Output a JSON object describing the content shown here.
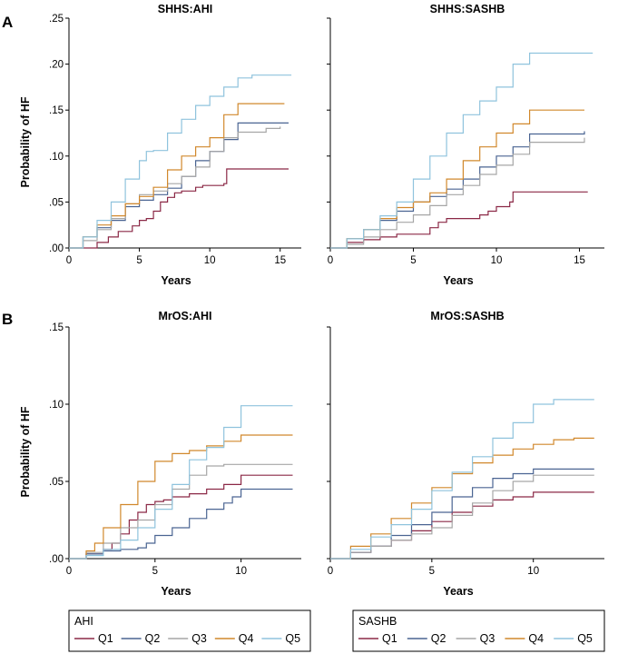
{
  "figure": {
    "row_letters": [
      "A",
      "B"
    ]
  },
  "series_colors": {
    "Q1": "#8b2846",
    "Q2": "#4a6492",
    "Q3": "#a6a6a6",
    "Q4": "#d1882c",
    "Q5": "#8fc3dd"
  },
  "chart_data": [
    {
      "type": "line",
      "title": "SHHS:AHI",
      "ylabel": "Probability of HF",
      "xlabel": "Years",
      "xlim": [
        0,
        16.5
      ],
      "ylim": [
        0,
        0.25
      ],
      "xticks": [
        0,
        5,
        10,
        15
      ],
      "xtick_labels": [
        "0",
        "5",
        "10",
        "15"
      ],
      "yticks": [
        0,
        0.05,
        0.1,
        0.15,
        0.2,
        0.25
      ],
      "ytick_labels": [
        ".00",
        ".05",
        ".10",
        ".15",
        ".20",
        ".25"
      ],
      "series": [
        {
          "name": "Q1",
          "x": [
            0,
            2,
            2.8,
            3.5,
            4.5,
            5,
            5.5,
            6,
            6.5,
            7,
            7.5,
            8,
            9,
            9.5,
            11,
            11.2,
            15.6
          ],
          "y": [
            0,
            0.006,
            0.012,
            0.018,
            0.024,
            0.03,
            0.032,
            0.04,
            0.05,
            0.055,
            0.06,
            0.062,
            0.066,
            0.068,
            0.07,
            0.086,
            0.086
          ]
        },
        {
          "name": "Q2",
          "x": [
            0,
            1,
            2,
            3,
            4,
            5,
            6,
            7,
            8,
            9,
            10,
            11,
            12,
            15.6
          ],
          "y": [
            0,
            0.012,
            0.022,
            0.03,
            0.045,
            0.052,
            0.058,
            0.065,
            0.078,
            0.095,
            0.105,
            0.118,
            0.136,
            0.136
          ]
        },
        {
          "name": "Q3",
          "x": [
            0,
            1,
            2,
            3,
            4,
            5,
            6,
            7,
            8,
            9,
            10,
            11,
            12,
            14,
            15
          ],
          "y": [
            0,
            0.008,
            0.02,
            0.032,
            0.048,
            0.058,
            0.062,
            0.07,
            0.078,
            0.088,
            0.105,
            0.12,
            0.126,
            0.13,
            0.132
          ]
        },
        {
          "name": "Q4",
          "x": [
            0,
            1,
            2,
            3,
            4,
            5,
            6,
            7,
            8,
            9,
            10,
            11,
            12,
            15.3
          ],
          "y": [
            0,
            0.012,
            0.025,
            0.035,
            0.048,
            0.056,
            0.066,
            0.085,
            0.1,
            0.11,
            0.12,
            0.145,
            0.157,
            0.157
          ]
        },
        {
          "name": "Q5",
          "x": [
            0,
            1,
            2,
            3,
            4,
            5,
            5.5,
            6,
            7,
            8,
            9,
            10,
            11,
            12,
            13,
            15.8
          ],
          "y": [
            0,
            0.012,
            0.03,
            0.05,
            0.075,
            0.095,
            0.105,
            0.106,
            0.125,
            0.14,
            0.155,
            0.165,
            0.175,
            0.185,
            0.188,
            0.188
          ]
        }
      ]
    },
    {
      "type": "line",
      "title": "SHHS:SASHB",
      "ylabel": "",
      "xlabel": "Years",
      "xlim": [
        0,
        16.5
      ],
      "ylim": [
        0,
        0.25
      ],
      "xticks": [
        0,
        5,
        10,
        15
      ],
      "xtick_labels": [
        "0",
        "5",
        "10",
        "15"
      ],
      "yticks": [
        0,
        0.05,
        0.1,
        0.15,
        0.2,
        0.25
      ],
      "ytick_labels": [],
      "series": [
        {
          "name": "Q1",
          "x": [
            0,
            1,
            2,
            3,
            4,
            5.2,
            6,
            6.5,
            7,
            8,
            9,
            9.5,
            10,
            10.8,
            11,
            15.5
          ],
          "y": [
            0,
            0.006,
            0.009,
            0.012,
            0.015,
            0.015,
            0.022,
            0.028,
            0.032,
            0.032,
            0.036,
            0.04,
            0.045,
            0.05,
            0.061,
            0.061
          ]
        },
        {
          "name": "Q2",
          "x": [
            0,
            1,
            2,
            3,
            4,
            5,
            6,
            7,
            8,
            9,
            10,
            11,
            12,
            15.3
          ],
          "y": [
            0,
            0.01,
            0.02,
            0.03,
            0.04,
            0.05,
            0.056,
            0.064,
            0.075,
            0.088,
            0.1,
            0.11,
            0.124,
            0.127
          ]
        },
        {
          "name": "Q3",
          "x": [
            0,
            1,
            2,
            3,
            4,
            5,
            6,
            7,
            8,
            9,
            10,
            11,
            12,
            15.3
          ],
          "y": [
            0,
            0.004,
            0.012,
            0.02,
            0.028,
            0.036,
            0.046,
            0.058,
            0.068,
            0.08,
            0.09,
            0.102,
            0.115,
            0.12
          ]
        },
        {
          "name": "Q4",
          "x": [
            0,
            1,
            2,
            3,
            4,
            5,
            6,
            7,
            8,
            9,
            10,
            11,
            12,
            15.3
          ],
          "y": [
            0,
            0.01,
            0.02,
            0.032,
            0.044,
            0.05,
            0.06,
            0.075,
            0.095,
            0.11,
            0.125,
            0.135,
            0.15,
            0.15
          ]
        },
        {
          "name": "Q5",
          "x": [
            0,
            1,
            2,
            3,
            4,
            5,
            6,
            7,
            8,
            9,
            10,
            11,
            12,
            15.8
          ],
          "y": [
            0,
            0.01,
            0.02,
            0.035,
            0.05,
            0.075,
            0.1,
            0.125,
            0.145,
            0.16,
            0.175,
            0.2,
            0.212,
            0.212
          ]
        }
      ]
    },
    {
      "type": "line",
      "title": "MrOS:AHI",
      "ylabel": "Probability of HF",
      "xlabel": "Years",
      "xlim": [
        0,
        13.5
      ],
      "ylim": [
        0,
        0.15
      ],
      "xticks": [
        0,
        5,
        10
      ],
      "xtick_labels": [
        "0",
        "5",
        "10"
      ],
      "yticks": [
        0,
        0.05,
        0.1,
        0.15
      ],
      "ytick_labels": [
        ".00",
        ".05",
        ".10",
        ".15"
      ],
      "series": [
        {
          "name": "Q1",
          "x": [
            0,
            1,
            2,
            2.5,
            3,
            3.5,
            4,
            4.5,
            5,
            5.5,
            6,
            7,
            8,
            9,
            10,
            13
          ],
          "y": [
            0,
            0.003,
            0.006,
            0.01,
            0.016,
            0.025,
            0.03,
            0.035,
            0.037,
            0.038,
            0.04,
            0.042,
            0.045,
            0.048,
            0.054,
            0.054
          ]
        },
        {
          "name": "Q2",
          "x": [
            0,
            1,
            2,
            3,
            4,
            4.5,
            5,
            6,
            7,
            8,
            9,
            9.5,
            10,
            13
          ],
          "y": [
            0,
            0.003,
            0.005,
            0.006,
            0.007,
            0.01,
            0.015,
            0.02,
            0.026,
            0.032,
            0.036,
            0.04,
            0.045,
            0.045
          ]
        },
        {
          "name": "Q3",
          "x": [
            0,
            1,
            2,
            3,
            4,
            5,
            6,
            7,
            8,
            9,
            13
          ],
          "y": [
            0,
            0.004,
            0.01,
            0.02,
            0.025,
            0.035,
            0.045,
            0.054,
            0.06,
            0.061,
            0.061
          ]
        },
        {
          "name": "Q4",
          "x": [
            0,
            1,
            1.5,
            2,
            3,
            4,
            5,
            6,
            7,
            8,
            9,
            10,
            13
          ],
          "y": [
            0,
            0.005,
            0.01,
            0.02,
            0.035,
            0.05,
            0.063,
            0.068,
            0.07,
            0.073,
            0.076,
            0.08,
            0.08
          ]
        },
        {
          "name": "Q5",
          "x": [
            0,
            1,
            2,
            3,
            4,
            5,
            6,
            7,
            8,
            9,
            10,
            13
          ],
          "y": [
            0,
            0.002,
            0.006,
            0.012,
            0.02,
            0.032,
            0.048,
            0.064,
            0.072,
            0.085,
            0.099,
            0.099
          ]
        }
      ]
    },
    {
      "type": "line",
      "title": "MrOS:SASHB",
      "ylabel": "",
      "xlabel": "Years",
      "xlim": [
        0,
        13.5
      ],
      "ylim": [
        0,
        0.15
      ],
      "xticks": [
        0,
        5,
        10
      ],
      "xtick_labels": [
        "0",
        "5",
        "10"
      ],
      "yticks": [
        0,
        0.05,
        0.1,
        0.15
      ],
      "ytick_labels": [],
      "series": [
        {
          "name": "Q1",
          "x": [
            0,
            1,
            2,
            3,
            4,
            5,
            6,
            7,
            8,
            9,
            10,
            13
          ],
          "y": [
            0,
            0.004,
            0.008,
            0.012,
            0.018,
            0.024,
            0.03,
            0.034,
            0.038,
            0.04,
            0.043,
            0.043
          ]
        },
        {
          "name": "Q2",
          "x": [
            0,
            1,
            2,
            3,
            4,
            5,
            6,
            7,
            8,
            9,
            10,
            13
          ],
          "y": [
            0,
            0.004,
            0.008,
            0.015,
            0.022,
            0.03,
            0.04,
            0.046,
            0.052,
            0.055,
            0.058,
            0.058
          ]
        },
        {
          "name": "Q3",
          "x": [
            0,
            1,
            2,
            3,
            4,
            5,
            6,
            7,
            8,
            9,
            10,
            13
          ],
          "y": [
            0,
            0.004,
            0.008,
            0.012,
            0.016,
            0.02,
            0.028,
            0.036,
            0.044,
            0.05,
            0.054,
            0.054
          ]
        },
        {
          "name": "Q4",
          "x": [
            0,
            1,
            2,
            3,
            4,
            5,
            6,
            7,
            8,
            9,
            10,
            11,
            12,
            13
          ],
          "y": [
            0,
            0.008,
            0.016,
            0.026,
            0.036,
            0.046,
            0.055,
            0.062,
            0.067,
            0.071,
            0.074,
            0.077,
            0.078,
            0.078
          ]
        },
        {
          "name": "Q5",
          "x": [
            0,
            1,
            2,
            3,
            4,
            5,
            6,
            7,
            8,
            9,
            10,
            11,
            13
          ],
          "y": [
            0,
            0.006,
            0.014,
            0.022,
            0.032,
            0.044,
            0.056,
            0.066,
            0.078,
            0.088,
            0.1,
            0.103,
            0.103
          ]
        }
      ]
    }
  ],
  "legends": [
    {
      "title": "AHI",
      "items": [
        "Q1",
        "Q2",
        "Q3",
        "Q4",
        "Q5"
      ]
    },
    {
      "title": "SASHB",
      "items": [
        "Q1",
        "Q2",
        "Q3",
        "Q4",
        "Q5"
      ]
    }
  ]
}
